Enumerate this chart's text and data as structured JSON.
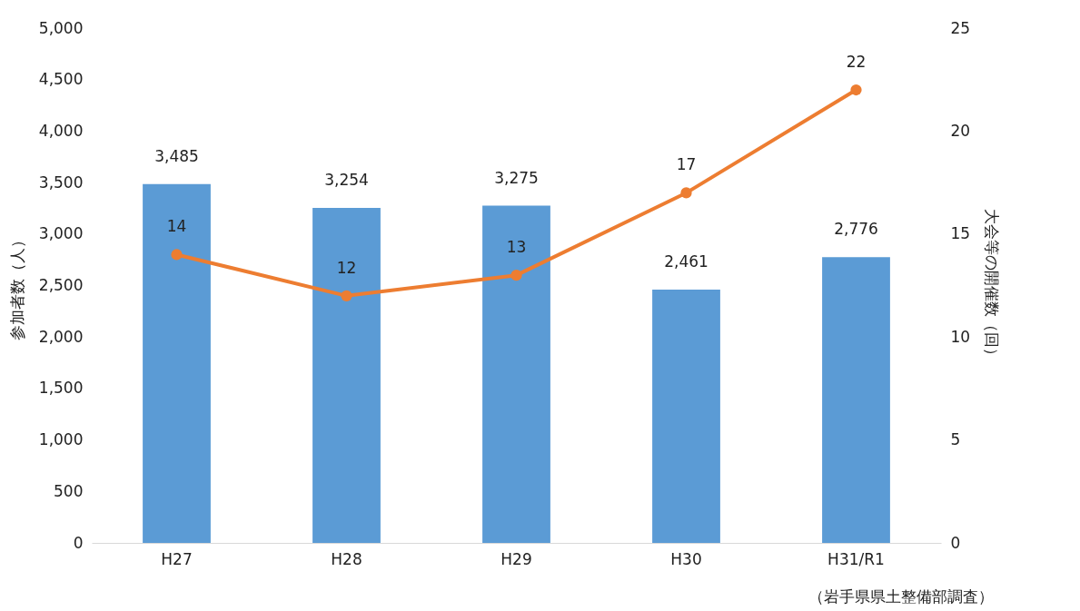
{
  "chart_data": {
    "type": "bar",
    "categories": [
      "H27",
      "H28",
      "H29",
      "H30",
      "H31/R1"
    ],
    "ylabel": "参加者数（人）",
    "y2label": "大会等の開催数（回）",
    "ylim": [
      0,
      5000
    ],
    "yticks": [
      0,
      {
        "value": 500,
        "label": "500"
      },
      {
        "value": 1000,
        "label": "1,000"
      },
      {
        "value": 1500,
        "label": "1,500"
      },
      {
        "value": 2000,
        "label": "2,000"
      },
      {
        "value": 2500,
        "label": "2,500"
      },
      {
        "value": 3000,
        "label": "3,000"
      },
      {
        "value": 3500,
        "label": "3,500"
      },
      {
        "value": 4000,
        "label": "4,000"
      },
      {
        "value": 4500,
        "label": "4,500"
      },
      {
        "value": 5000,
        "label": "5,000"
      }
    ],
    "y2lim": [
      0,
      25
    ],
    "y2ticks": [
      0,
      5,
      10,
      15,
      20,
      25
    ],
    "grid": false,
    "series": [
      {
        "color": "#5b9bd5",
        "values": [
          3485,
          3254,
          3275,
          2461,
          2776
        ],
        "value_labels": [
          "3,485",
          "3,254",
          "3,275",
          "2,461",
          "2,776"
        ]
      },
      {
        "type": "line",
        "axis": "y2",
        "color": "#ed7d31",
        "marker": "circle",
        "line_style": "solid",
        "values": [
          14,
          12,
          13,
          17,
          22
        ],
        "value_labels": [
          "14",
          "12",
          "13",
          "17",
          "22"
        ]
      }
    ],
    "annotations": [
      "（岩手県県土整備部調査）"
    ]
  }
}
